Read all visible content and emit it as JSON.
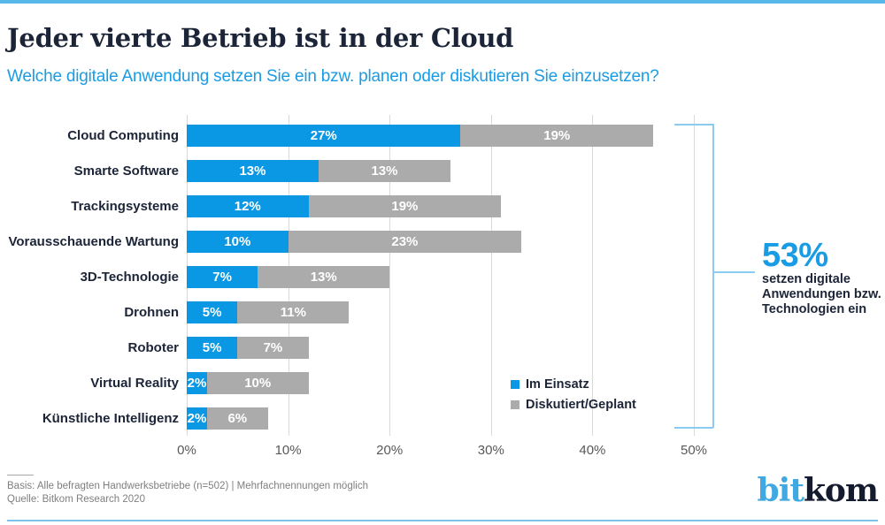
{
  "page": {
    "title": "Jeder vierte Betrieb ist in der Cloud",
    "subtitle": "Welche digitale Anwendung setzen Sie ein bzw. planen oder diskutieren Sie einzusetzen?"
  },
  "chart_data": {
    "type": "bar",
    "orientation": "horizontal",
    "stacked": true,
    "grid": true,
    "xlim": [
      0,
      50
    ],
    "x_ticks": [
      "0%",
      "10%",
      "20%",
      "30%",
      "40%",
      "50%"
    ],
    "value_suffix": "%",
    "categories": [
      "Cloud Computing",
      "Smarte Software",
      "Trackingsysteme",
      "Vorausschauende Wartung",
      "3D-Technologie",
      "Drohnen",
      "Roboter",
      "Virtual Reality",
      "Künstliche Intelligenz"
    ],
    "series": [
      {
        "name": "Im Einsatz",
        "color": "#0a97e4",
        "values": [
          27,
          13,
          12,
          10,
          7,
          5,
          5,
          2,
          2
        ]
      },
      {
        "name": "Diskutiert/Geplant",
        "color": "#ababab",
        "values": [
          19,
          13,
          19,
          23,
          13,
          11,
          7,
          10,
          6
        ]
      }
    ],
    "legend_position": "inside-bottom-right"
  },
  "callout": {
    "value": "53%",
    "lines": [
      "setzen digitale",
      "Anwendungen bzw.",
      "Technologien ein"
    ]
  },
  "footer": {
    "basis": "Basis: Alle befragten Handwerksbetriebe (n=502) | Mehrfachnennungen möglich",
    "source": "Quelle: Bitkom Research 2020"
  },
  "logo": {
    "part1": "bit",
    "part2": "kom"
  },
  "colors": {
    "accent_blue": "#199ce4",
    "bar_blue": "#0a97e4",
    "bar_gray": "#ababab",
    "top_line": "#57b7e9",
    "bracket": "#8ccbef",
    "title_text": "#1c2437",
    "tick_text": "#595959",
    "footer_text": "#7f7f7f"
  }
}
